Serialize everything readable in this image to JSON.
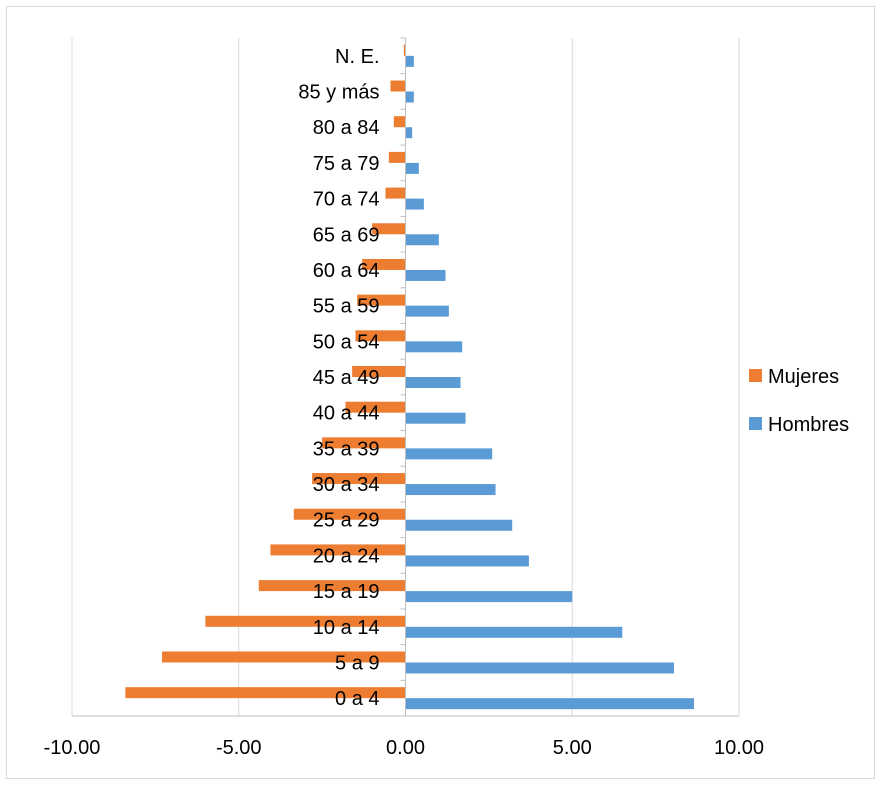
{
  "chart_data": {
    "type": "bar",
    "orientation": "horizontal",
    "title": "",
    "xlabel": "",
    "ylabel": "",
    "categories": [
      "0 a 4",
      "5 a 9",
      "10 a 14",
      "15 a 19",
      "20 a 24",
      "25 a 29",
      "30 a 34",
      "35 a 39",
      "40 a 44",
      "45 a 49",
      "50 a 54",
      "55 a 59",
      "60 a 64",
      "65 a 69",
      "70 a 74",
      "75 a 79",
      "80 a 84",
      "85 y más",
      "N. E."
    ],
    "series": [
      {
        "name": "Hombres",
        "color": "#5b9bd5",
        "values": [
          8.65,
          8.05,
          6.5,
          5.0,
          3.7,
          3.2,
          2.7,
          2.6,
          1.8,
          1.65,
          1.7,
          1.3,
          1.2,
          1.0,
          0.55,
          0.4,
          0.2,
          0.25,
          0.25
        ]
      },
      {
        "name": "Mujeres",
        "color": "#ed7d31",
        "values": [
          -8.4,
          -7.3,
          -6.0,
          -4.4,
          -4.05,
          -3.35,
          -2.8,
          -2.5,
          -1.8,
          -1.6,
          -1.5,
          -1.45,
          -1.3,
          -1.0,
          -0.6,
          -0.5,
          -0.35,
          -0.45,
          -0.05
        ]
      }
    ],
    "xlim": [
      -10,
      10
    ],
    "x_ticks": [
      -10,
      -5,
      0,
      5,
      10
    ],
    "x_tick_labels": [
      "-10.00",
      "-5.00",
      "0.00",
      "5.00",
      "10.00"
    ],
    "grid": true,
    "legend": {
      "position": "right",
      "entries": [
        "Mujeres",
        "Hombres"
      ]
    }
  }
}
